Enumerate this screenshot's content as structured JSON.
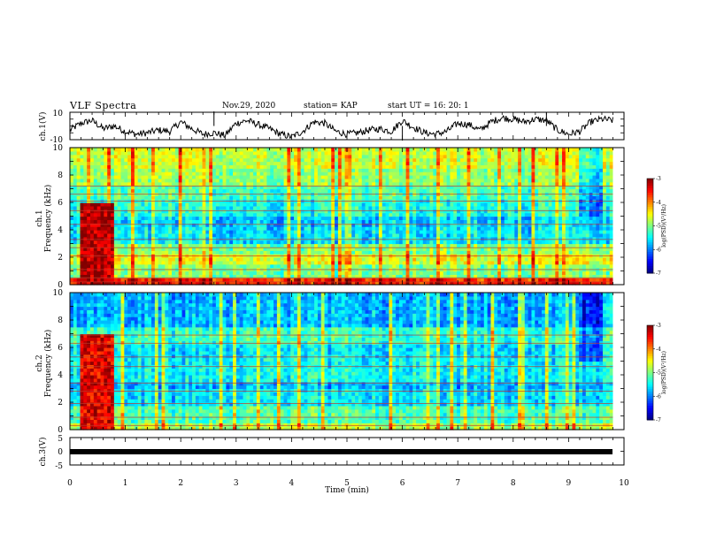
{
  "header": {
    "title": "VLF Spectra",
    "date": "Nov.29, 2020",
    "station": "station= KAP",
    "start": "start  UT =   16: 20: 1"
  },
  "chart_data": [
    {
      "type": "line",
      "name": "ch1-waveform",
      "ylabel": "ch.1(V)",
      "ylim": [
        -10,
        10
      ],
      "yticks": [
        "10",
        "-10"
      ],
      "xlim": [
        0,
        10
      ],
      "color": "#000000",
      "x": [
        0,
        0.2,
        0.4,
        0.6,
        0.8,
        1.0,
        1.2,
        1.4,
        1.6,
        1.8,
        2.0,
        2.2,
        2.4,
        2.6,
        2.8,
        3.0,
        3.2,
        3.4,
        3.6,
        3.8,
        4.0,
        4.2,
        4.4,
        4.6,
        4.8,
        5.0,
        5.2,
        5.4,
        5.6,
        5.8,
        6.0,
        6.2,
        6.4,
        6.6,
        6.8,
        7.0,
        7.2,
        7.4,
        7.6,
        7.8,
        8.0,
        8.2,
        8.4,
        8.6,
        8.8,
        9.0,
        9.2,
        9.4,
        9.6,
        9.8
      ],
      "y": [
        -3,
        2,
        4,
        -2,
        0,
        -4,
        -6,
        -5,
        -3,
        -4,
        3,
        -2,
        -6,
        -5,
        -7,
        2,
        4,
        1,
        -2,
        -6,
        -8,
        -4,
        3,
        2,
        -4,
        -6,
        -5,
        -3,
        -2,
        -4,
        4,
        -1,
        -5,
        -6,
        -4,
        2,
        1,
        -3,
        3,
        6,
        5,
        3,
        5,
        4,
        -3,
        -6,
        -4,
        3,
        5,
        4
      ],
      "spikes": [
        {
          "x": 2.6,
          "y": 10
        },
        {
          "x": 6.0,
          "y": -10
        },
        {
          "x": 8.6,
          "y": 9
        }
      ]
    },
    {
      "type": "heatmap",
      "name": "ch1-spectrogram",
      "ylabel": "ch.1\nFrequency (kHz)",
      "ylabel_line1": "ch.1",
      "ylabel_line2": "Frequency (kHz)",
      "ylim": [
        0,
        10
      ],
      "yticks": [
        "0",
        "2",
        "4",
        "6",
        "8",
        "10"
      ],
      "xlim": [
        0,
        10
      ],
      "colorbar": {
        "label": "log(PSD)(V²/Hz)",
        "ticks": [
          "-3",
          "-4",
          "-5",
          "-6",
          "-7"
        ],
        "range": [
          -7,
          -3
        ]
      },
      "bands": [
        {
          "f0": 0,
          "f1": 0.6,
          "level": -3.6
        },
        {
          "f0": 0.6,
          "f1": 1.4,
          "level": -5.0
        },
        {
          "f0": 1.4,
          "f1": 2.2,
          "level": -4.6
        },
        {
          "f0": 2.2,
          "f1": 3.0,
          "level": -5.0
        },
        {
          "f0": 3.0,
          "f1": 4.2,
          "level": -5.6
        },
        {
          "f0": 4.2,
          "f1": 5.0,
          "level": -5.7
        },
        {
          "f0": 5.0,
          "f1": 6.2,
          "level": -5.4
        },
        {
          "f0": 6.2,
          "f1": 7.2,
          "level": -5.2
        },
        {
          "f0": 7.2,
          "f1": 8.5,
          "level": -4.9
        },
        {
          "f0": 8.5,
          "f1": 10,
          "level": -4.7
        }
      ],
      "burst": {
        "t0": 0.2,
        "t1": 0.8,
        "f0": 0,
        "f1": 6.0,
        "level": -3.2
      },
      "lines_khz": [
        0.2,
        0.5,
        1.1,
        2.1,
        2.7,
        3.3,
        4.4,
        5.4,
        6.1,
        6.6,
        7.2
      ]
    },
    {
      "type": "heatmap",
      "name": "ch2-spectrogram",
      "ylabel": "ch.2\nFrequency (kHz)",
      "ylabel_line1": "ch.2",
      "ylabel_line2": "Frequency (kHz)",
      "ylim": [
        0,
        10
      ],
      "yticks": [
        "0",
        "2",
        "4",
        "6",
        "8",
        "10"
      ],
      "xlim": [
        0,
        10
      ],
      "colorbar": {
        "label": "log(PSD)(V²/Hz)",
        "ticks": [
          "-3",
          "-4",
          "-5",
          "-6",
          "-7"
        ],
        "range": [
          -7,
          -3
        ]
      },
      "bands": [
        {
          "f0": 0,
          "f1": 0.6,
          "level": -4.8
        },
        {
          "f0": 0.6,
          "f1": 1.8,
          "level": -5.2
        },
        {
          "f0": 1.8,
          "f1": 3.0,
          "level": -5.6
        },
        {
          "f0": 3.0,
          "f1": 3.6,
          "level": -5.8
        },
        {
          "f0": 3.6,
          "f1": 5.2,
          "level": -5.5
        },
        {
          "f0": 5.2,
          "f1": 6.2,
          "level": -5.6
        },
        {
          "f0": 6.2,
          "f1": 7.5,
          "level": -5.3
        },
        {
          "f0": 7.5,
          "f1": 10,
          "level": -5.8
        }
      ],
      "burst": {
        "t0": 0.2,
        "t1": 0.8,
        "f0": 0,
        "f1": 7.0,
        "level": -3.4
      },
      "lines_khz": [
        0.3,
        0.9,
        1.9,
        2.8,
        3.4,
        4.6,
        5.3,
        6.3,
        6.9
      ]
    },
    {
      "type": "line",
      "name": "ch3-waveform",
      "ylabel": "ch.3(V)",
      "ylim": [
        -5,
        5
      ],
      "yticks": [
        "5",
        "0",
        "-5"
      ],
      "xlim": [
        0,
        10
      ],
      "x": [
        0,
        9.8
      ],
      "y": [
        0,
        0
      ],
      "color": "#000000",
      "xlabel": "Time  (min)",
      "xticks": [
        "0",
        "1",
        "2",
        "3",
        "4",
        "5",
        "6",
        "7",
        "8",
        "9",
        "10"
      ]
    }
  ]
}
